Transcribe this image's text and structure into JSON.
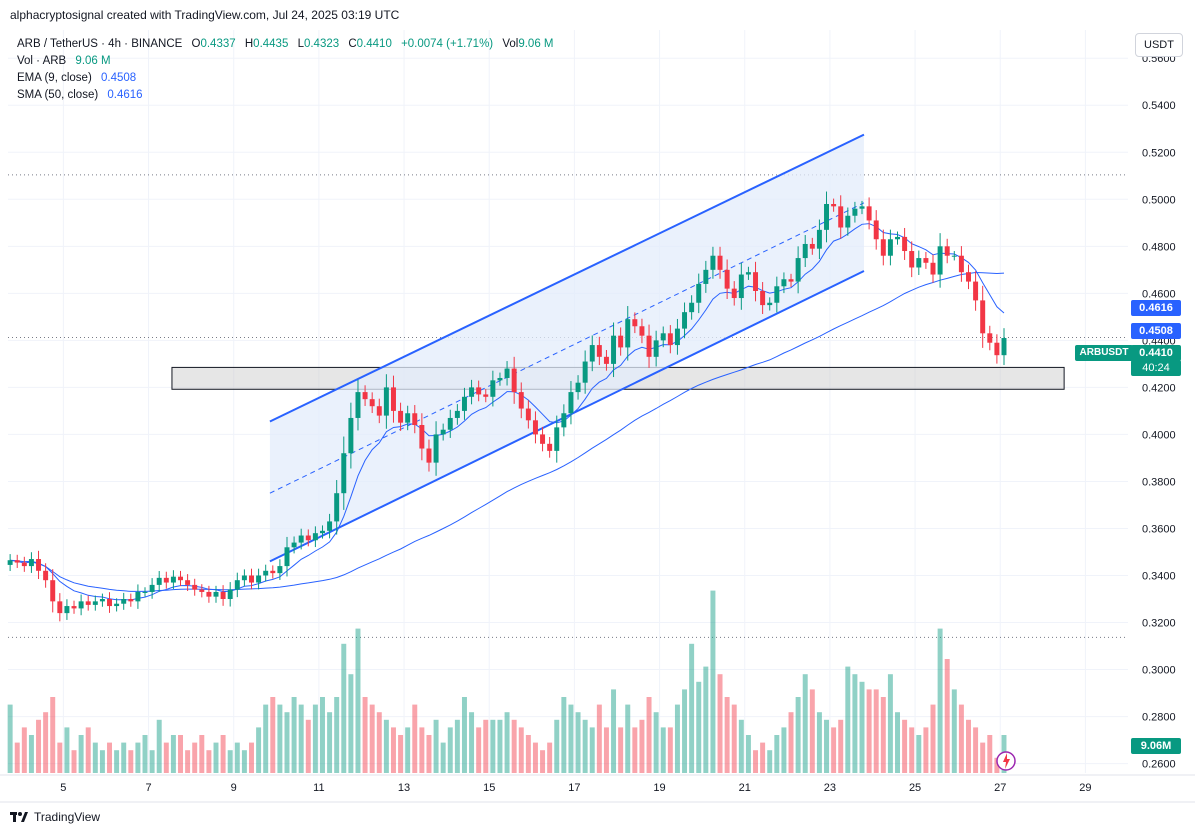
{
  "header": {
    "attribution": "alphacryptosignal created with TradingView.com, Jul 24, 2025 03:19 UTC"
  },
  "legend": {
    "symbol": "ARB / TetherUS · 4h · BINANCE",
    "o_label": "O",
    "o": "0.4337",
    "h_label": "H",
    "h": "0.4435",
    "l_label": "L",
    "l": "0.4323",
    "c_label": "C",
    "c": "0.4410",
    "change": "+0.0074 (+1.71%)",
    "vol_label": "Vol",
    "vol": "9.06 M",
    "vol_row_label": "Vol · ARB",
    "vol_row_value": "9.06 M",
    "ema_label": "EMA (9, close)",
    "ema_value": "0.4508",
    "sma_label": "SMA (50, close)",
    "sma_value": "0.4616"
  },
  "currency_button": "USDT",
  "footer": {
    "brand": "TradingView"
  },
  "colors": {
    "up": "#089981",
    "down": "#f23645",
    "ema": "#2962ff",
    "sma": "#2962ff",
    "channel": "#2962ff",
    "channel_fill": "#e3ecfb"
  },
  "tags": {
    "sma_tag": "0.4616",
    "ema_tag": "0.4508",
    "symbol_tag": "ARBUSDT",
    "price_tag": "0.4410",
    "countdown": "40:24",
    "vol_tag": "9.06M"
  },
  "chart_data": {
    "type": "candlestick",
    "symbol": "ARBUSDT",
    "timeframe": "4h",
    "ylim": [
      0.256,
      0.572
    ],
    "yticks": [
      "0.5600",
      "0.5400",
      "0.5200",
      "0.5000",
      "0.4800",
      "0.4600",
      "0.4400",
      "0.4200",
      "0.4000",
      "0.3800",
      "0.3600",
      "0.3400",
      "0.3200",
      "0.3000",
      "0.2800",
      "0.2600"
    ],
    "xticks": [
      "5",
      "7",
      "9",
      "11",
      "13",
      "15",
      "17",
      "19",
      "21",
      "23",
      "25",
      "27",
      "29"
    ],
    "xtick_days": [
      5,
      7,
      9,
      11,
      13,
      15,
      17,
      19,
      21,
      23,
      25,
      27,
      29
    ],
    "day_range": [
      3.7,
      30.0
    ],
    "candles_start_day": 3.75,
    "candle_interval_days": 0.1667,
    "closes": [
      0.3465,
      0.3455,
      0.344,
      0.347,
      0.342,
      0.338,
      0.329,
      0.324,
      0.327,
      0.326,
      0.329,
      0.3275,
      0.329,
      0.33,
      0.327,
      0.328,
      0.33,
      0.329,
      0.333,
      0.333,
      0.336,
      0.339,
      0.337,
      0.3395,
      0.338,
      0.336,
      0.334,
      0.333,
      0.331,
      0.333,
      0.33,
      0.334,
      0.338,
      0.34,
      0.337,
      0.34,
      0.342,
      0.341,
      0.344,
      0.352,
      0.354,
      0.357,
      0.355,
      0.358,
      0.359,
      0.363,
      0.375,
      0.392,
      0.407,
      0.418,
      0.415,
      0.412,
      0.408,
      0.42,
      0.41,
      0.405,
      0.409,
      0.404,
      0.394,
      0.388,
      0.4,
      0.402,
      0.407,
      0.41,
      0.416,
      0.42,
      0.417,
      0.416,
      0.423,
      0.424,
      0.428,
      0.418,
      0.411,
      0.406,
      0.4,
      0.396,
      0.393,
      0.403,
      0.409,
      0.418,
      0.422,
      0.431,
      0.438,
      0.433,
      0.43,
      0.442,
      0.437,
      0.449,
      0.446,
      0.442,
      0.433,
      0.44,
      0.443,
      0.438,
      0.445,
      0.452,
      0.456,
      0.464,
      0.47,
      0.476,
      0.47,
      0.462,
      0.458,
      0.468,
      0.469,
      0.461,
      0.455,
      0.456,
      0.463,
      0.466,
      0.465,
      0.475,
      0.481,
      0.479,
      0.487,
      0.498,
      0.497,
      0.488,
      0.493,
      0.496,
      0.497,
      0.491,
      0.483,
      0.476,
      0.483,
      0.484,
      0.478,
      0.471,
      0.475,
      0.473,
      0.468,
      0.48,
      0.476,
      0.476,
      0.469,
      0.465,
      0.457,
      0.443,
      0.439,
      0.4337,
      0.441
    ],
    "volumes": [
      4.5,
      2.0,
      3.0,
      2.5,
      3.5,
      4.0,
      5.0,
      2.0,
      3.0,
      1.5,
      2.5,
      3.0,
      2.0,
      1.5,
      2.0,
      1.5,
      2.0,
      1.5,
      2.0,
      2.5,
      1.5,
      3.5,
      2.0,
      2.5,
      2.5,
      1.5,
      2.0,
      2.5,
      1.5,
      2.0,
      2.5,
      1.5,
      2.0,
      1.5,
      2.0,
      3.0,
      4.5,
      5.0,
      4.5,
      4.0,
      5.0,
      4.5,
      3.5,
      4.5,
      5.0,
      4.0,
      5.0,
      8.5,
      6.5,
      9.5,
      5.0,
      4.5,
      4.0,
      3.5,
      3.0,
      2.5,
      3.0,
      4.5,
      3.0,
      2.5,
      3.5,
      2.0,
      3.0,
      3.5,
      5.0,
      4.0,
      3.0,
      3.5,
      3.5,
      3.5,
      4.0,
      3.5,
      3.0,
      2.5,
      2.0,
      1.5,
      2.0,
      3.5,
      5.0,
      4.5,
      4.0,
      3.5,
      3.0,
      4.5,
      3.0,
      5.5,
      3.0,
      4.5,
      3.0,
      3.5,
      5.0,
      4.0,
      3.0,
      3.0,
      4.5,
      5.5,
      8.5,
      6.0,
      7.0,
      12.0,
      6.5,
      5.0,
      4.5,
      3.5,
      2.5,
      1.5,
      2.0,
      1.5,
      2.5,
      3.0,
      4.0,
      5.0,
      6.5,
      5.5,
      4.0,
      3.5,
      3.0,
      3.5,
      7.0,
      6.5,
      6.0,
      5.5,
      5.5,
      5.0,
      6.5,
      4.0,
      3.5,
      3.0,
      2.5,
      3.0,
      4.5,
      9.5,
      7.5,
      5.5,
      4.5,
      3.5,
      3.0,
      2.0,
      2.5,
      1.0,
      2.5
    ],
    "volume_ylim": [
      0,
      12.5
    ],
    "horizontal_dotted_lines": [
      0.5104,
      0.4412,
      0.3137
    ],
    "support_zone": {
      "x_days": [
        7.55,
        28.5
      ],
      "y": [
        0.4192,
        0.4285
      ]
    },
    "channel": {
      "upper": {
        "x_days": [
          9.85,
          23.8
        ],
        "y": [
          0.4055,
          0.5275
        ]
      },
      "lower": {
        "x_days": [
          9.85,
          23.8
        ],
        "y": [
          0.346,
          0.4695
        ]
      },
      "mid": {
        "x_days": [
          9.85,
          23.8
        ],
        "y": [
          0.375,
          0.4985
        ]
      }
    },
    "series": [
      {
        "name": "EMA (9, close)",
        "last": 0.4508
      },
      {
        "name": "SMA (50, close)",
        "last": 0.4616
      }
    ]
  }
}
